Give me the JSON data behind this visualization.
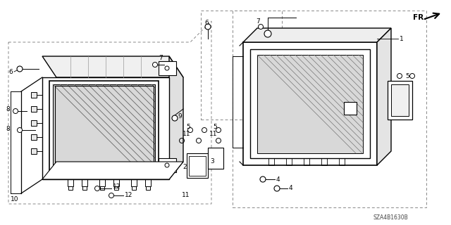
{
  "part_number": "SZA4B1630B",
  "bg": "#ffffff",
  "lc": "#000000",
  "dc": "#888888",
  "fig_width": 6.4,
  "fig_height": 3.2,
  "dpi": 100
}
